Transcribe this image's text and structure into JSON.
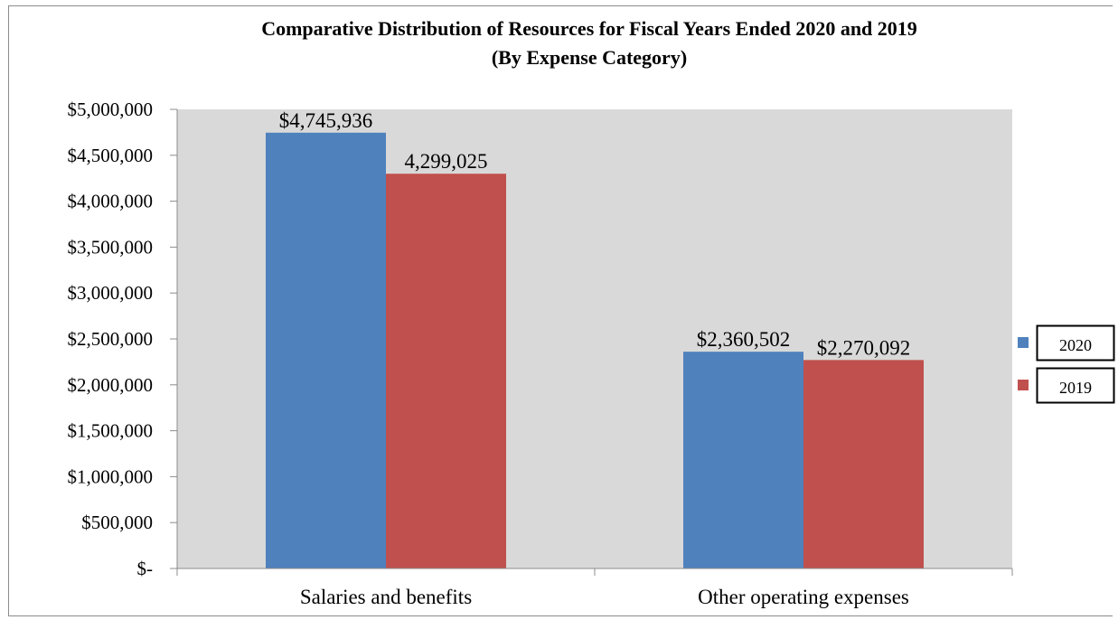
{
  "chart_data": {
    "type": "bar",
    "title": "Comparative Distribution of Resources for Fiscal Years Ended 2020 and 2019",
    "subtitle": "(By Expense Category)",
    "xlabel": "",
    "ylabel": "",
    "categories": [
      "Salaries and benefits",
      "Other operating expenses"
    ],
    "series": [
      {
        "name": "2020",
        "color": "#4f81bd",
        "values": [
          4745936,
          2360502
        ],
        "labels": [
          "$4,745,936",
          "$2,360,502"
        ]
      },
      {
        "name": "2019",
        "color": "#c0504d",
        "values": [
          4299025,
          2270092
        ],
        "labels": [
          "4,299,025",
          "$2,270,092"
        ]
      }
    ],
    "ylim": [
      0,
      5000000
    ],
    "yticks": [
      0,
      500000,
      1000000,
      1500000,
      2000000,
      2500000,
      3000000,
      3500000,
      4000000,
      4500000,
      5000000
    ],
    "ytick_labels": [
      "$-",
      "$500,000",
      "$1,000,000",
      "$1,500,000",
      "$2,000,000",
      "$2,500,000",
      "$3,000,000",
      "$3,500,000",
      "$4,000,000",
      "$4,500,000",
      "$5,000,000"
    ],
    "grid": false,
    "plot_background": "#d9d9d9",
    "legend_position": "right"
  }
}
